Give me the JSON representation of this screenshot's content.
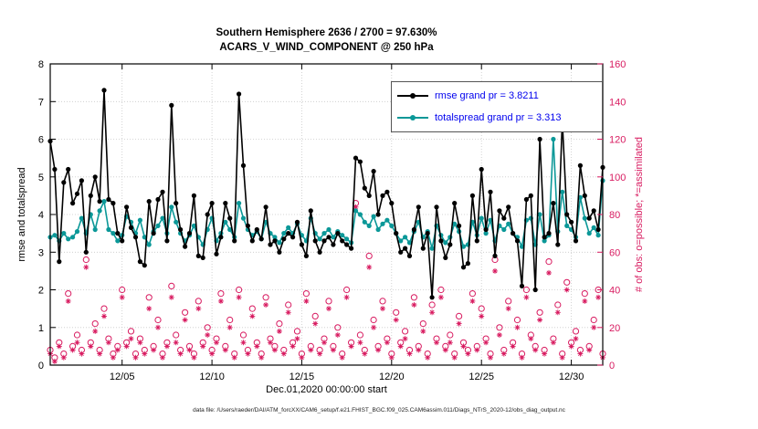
{
  "title": {
    "line1": "Southern Hemisphere 2636 / 2700 = 97.630%",
    "line2": "ACARS_V_WIND_COMPONENT @ 250 hPa"
  },
  "axes": {
    "ylabel_left": "rmse and totalspread",
    "ylabel_right": "# of obs: o=possible; *=assimilated",
    "xlabel": "Dec.01,2020 00:00:00 start",
    "yticks_left": [
      0,
      1,
      2,
      3,
      4,
      5,
      6,
      7,
      8
    ],
    "yticks_right": [
      0,
      20,
      40,
      60,
      80,
      100,
      120,
      140,
      160
    ],
    "xtick_labels": [
      "12/05",
      "12/10",
      "12/15",
      "12/20",
      "12/25",
      "12/30"
    ],
    "xtick_indices": [
      16,
      36,
      56,
      76,
      96,
      116
    ]
  },
  "legend": [
    {
      "label": "rmse grand pr = 3.8211",
      "color": "#000000"
    },
    {
      "label": "totalspread grand pr = 3.313",
      "color": "#0b9898"
    }
  ],
  "footer": "data file: /Users/raeder/DAI/ATM_forcXX/CAM6_setup/f.e21.FHIST_BGC.f09_025.CAM6assim.011/Diags_NTrS_2020-12/obs_diag_output.nc",
  "colors": {
    "rmse": "#000000",
    "totalspread": "#0b9898",
    "obs": "#d81b60",
    "legend_text": "#0000ee",
    "grid": "#c9c9c9",
    "axis": "#000000"
  },
  "chart_data": {
    "type": "line",
    "x_description": "6-hourly bins, Dec 01 2020 00:00 to Dec 31 2020 18:00",
    "ylim_left": [
      0,
      8
    ],
    "ylim_right": [
      0,
      160
    ],
    "grid": true,
    "legend_position": "top-right",
    "series": [
      {
        "name": "rmse",
        "axis": "left",
        "legend": "rmse grand pr = 3.8211",
        "values": [
          5.95,
          5.2,
          2.75,
          4.85,
          5.2,
          4.3,
          4.55,
          4.9,
          3.0,
          4.5,
          5.0,
          4.35,
          7.3,
          4.4,
          4.3,
          3.5,
          3.3,
          4.2,
          3.65,
          3.4,
          2.75,
          2.65,
          4.35,
          3.5,
          4.4,
          4.6,
          3.3,
          6.9,
          4.3,
          3.6,
          3.15,
          3.5,
          4.5,
          2.9,
          2.85,
          4.0,
          4.3,
          2.95,
          3.4,
          4.3,
          3.9,
          3.3,
          7.2,
          5.3,
          3.7,
          3.3,
          3.6,
          3.35,
          4.2,
          3.2,
          3.3,
          3.0,
          3.35,
          3.5,
          3.4,
          3.8,
          3.2,
          2.9,
          4.1,
          3.3,
          3.0,
          3.3,
          3.4,
          3.2,
          3.5,
          3.3,
          3.2,
          3.1,
          5.5,
          5.4,
          4.7,
          4.5,
          5.15,
          4.0,
          4.5,
          4.6,
          4.3,
          3.5,
          3.0,
          3.1,
          2.9,
          3.6,
          4.2,
          3.1,
          3.5,
          1.8,
          4.2,
          3.3,
          2.85,
          3.2,
          4.3,
          3.7,
          2.6,
          2.7,
          4.5,
          3.3,
          5.2,
          3.6,
          4.6,
          2.9,
          4.1,
          3.9,
          4.2,
          3.5,
          3.3,
          2.1,
          4.4,
          4.5,
          2.0,
          6.0,
          3.4,
          3.5,
          4.3,
          3.2,
          6.5,
          4.0,
          3.8,
          3.3,
          5.3,
          4.5,
          3.9,
          4.1,
          3.6,
          5.25
        ]
      },
      {
        "name": "totalspread",
        "axis": "left",
        "legend": "totalspread grand pr = 3.313",
        "values": [
          3.4,
          3.45,
          3.3,
          3.5,
          3.35,
          3.4,
          3.55,
          3.9,
          3.5,
          4.0,
          3.6,
          4.1,
          4.35,
          3.6,
          3.5,
          3.3,
          3.45,
          3.95,
          3.8,
          3.5,
          3.85,
          3.4,
          3.2,
          3.55,
          3.7,
          3.9,
          3.5,
          4.2,
          3.8,
          3.5,
          3.3,
          3.45,
          3.7,
          3.4,
          3.2,
          3.6,
          3.9,
          3.3,
          3.5,
          3.8,
          3.6,
          3.4,
          4.3,
          3.9,
          3.6,
          3.45,
          3.55,
          3.35,
          3.8,
          3.5,
          3.4,
          3.25,
          3.5,
          3.65,
          3.5,
          3.75,
          3.45,
          3.3,
          3.9,
          3.5,
          3.35,
          3.5,
          3.6,
          3.4,
          3.55,
          3.45,
          3.35,
          3.25,
          4.1,
          4.0,
          3.8,
          3.7,
          3.95,
          3.6,
          3.75,
          3.85,
          3.7,
          3.5,
          3.3,
          3.4,
          3.25,
          3.55,
          3.8,
          3.4,
          3.55,
          3.1,
          3.7,
          3.45,
          3.25,
          3.4,
          3.75,
          3.55,
          3.15,
          3.2,
          3.8,
          3.45,
          3.9,
          3.5,
          3.85,
          3.3,
          3.7,
          3.6,
          3.75,
          3.5,
          3.4,
          3.15,
          3.85,
          3.9,
          3.2,
          4.0,
          3.3,
          3.45,
          6.0,
          3.55,
          4.6,
          3.7,
          3.6,
          3.4,
          4.45,
          3.9,
          3.5,
          3.65,
          3.45,
          4.9
        ]
      }
    ],
    "scatter": [
      {
        "name": "possible",
        "marker": "o",
        "axis": "right",
        "values": [
          8,
          4,
          12,
          6,
          38,
          10,
          16,
          8,
          56,
          12,
          22,
          8,
          30,
          14,
          6,
          10,
          40,
          12,
          18,
          6,
          14,
          8,
          36,
          10,
          24,
          6,
          12,
          42,
          16,
          8,
          28,
          10,
          6,
          34,
          12,
          20,
          8,
          14,
          38,
          10,
          24,
          6,
          40,
          16,
          8,
          30,
          12,
          6,
          36,
          14,
          10,
          22,
          8,
          32,
          12,
          18,
          6,
          38,
          10,
          26,
          8,
          14,
          34,
          10,
          20,
          6,
          40,
          12,
          86,
          16,
          8,
          58,
          24,
          10,
          34,
          14,
          6,
          28,
          12,
          18,
          8,
          36,
          10,
          22,
          6,
          32,
          14,
          40,
          10,
          16,
          6,
          26,
          12,
          8,
          38,
          10,
          30,
          14,
          6,
          56,
          20,
          8,
          34,
          12,
          24,
          6,
          40,
          16,
          10,
          28,
          8,
          55,
          14,
          32,
          6,
          44,
          12,
          18,
          8,
          38,
          10,
          24,
          40,
          6
        ]
      },
      {
        "name": "assimilated",
        "marker": "*",
        "axis": "right",
        "values": [
          6,
          2,
          10,
          4,
          34,
          8,
          12,
          6,
          52,
          10,
          18,
          6,
          26,
          12,
          4,
          8,
          36,
          10,
          14,
          4,
          12,
          6,
          30,
          8,
          20,
          4,
          10,
          36,
          12,
          6,
          24,
          8,
          4,
          30,
          10,
          16,
          6,
          12,
          34,
          8,
          20,
          4,
          36,
          12,
          6,
          26,
          10,
          4,
          32,
          12,
          8,
          18,
          6,
          28,
          10,
          14,
          4,
          34,
          8,
          22,
          6,
          12,
          30,
          8,
          16,
          4,
          36,
          10,
          84,
          12,
          6,
          52,
          20,
          8,
          30,
          12,
          4,
          24,
          10,
          14,
          6,
          32,
          8,
          18,
          4,
          28,
          12,
          36,
          8,
          12,
          4,
          22,
          10,
          6,
          34,
          8,
          26,
          12,
          4,
          50,
          16,
          6,
          30,
          10,
          20,
          4,
          36,
          14,
          8,
          24,
          6,
          49,
          12,
          28,
          4,
          40,
          10,
          14,
          6,
          34,
          8,
          20,
          36,
          4
        ]
      }
    ]
  }
}
